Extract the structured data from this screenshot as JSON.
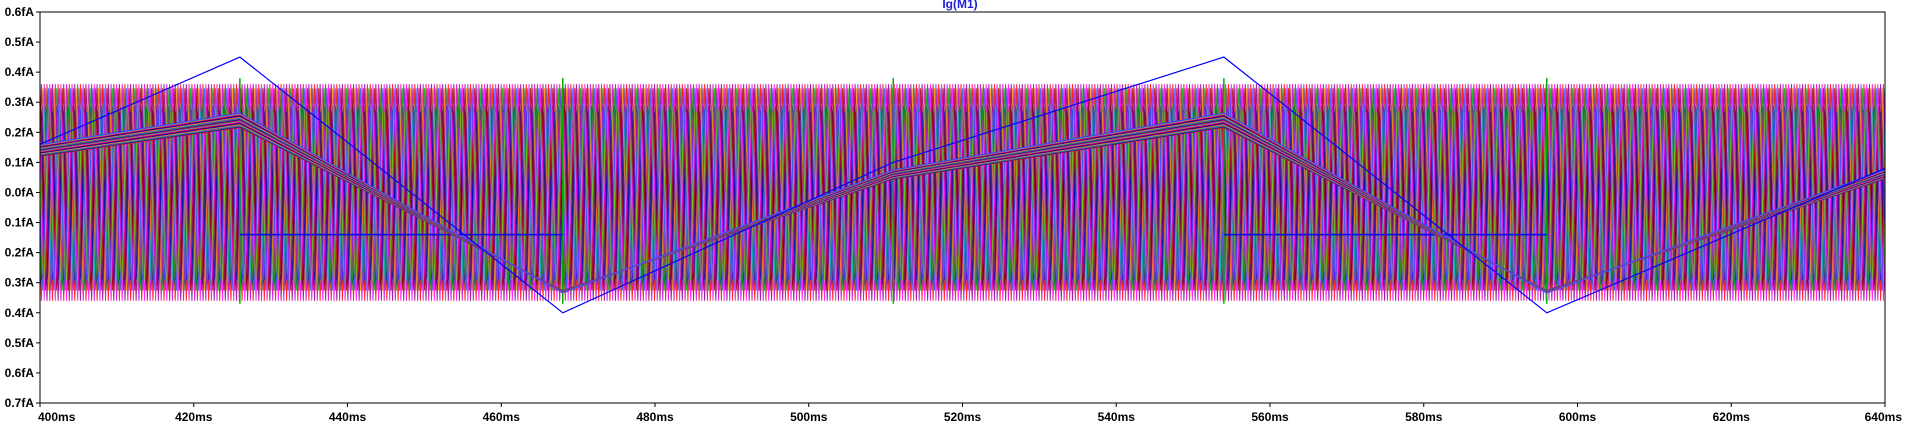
{
  "chart_data": {
    "type": "line",
    "title": "Ig(M1)",
    "title_color": "#1f1fd8",
    "xlabel": "",
    "ylabel": "",
    "x_unit": "ms",
    "y_unit": "fA",
    "xlim": [
      400,
      640
    ],
    "ylim": [
      -0.7,
      0.6
    ],
    "grid": false,
    "x_ticks": [
      "400ms",
      "420ms",
      "440ms",
      "460ms",
      "480ms",
      "500ms",
      "520ms",
      "540ms",
      "560ms",
      "580ms",
      "600ms",
      "620ms",
      "640ms"
    ],
    "y_ticks": [
      "0.6fA",
      "0.5fA",
      "0.4fA",
      "0.3fA",
      "0.2fA",
      "0.1fA",
      "0.0fA",
      "-0.1fA",
      "-0.2fA",
      "-0.3fA",
      "-0.4fA",
      "-0.5fA",
      "-0.6fA",
      "-0.7fA"
    ],
    "y_tick_labels_shown": [
      "0.6fA",
      "0.5fA",
      "0.4fA",
      "0.3fA",
      "0.2fA",
      "0.1fA",
      "0.0fA",
      "0.1fA",
      "0.2fA",
      "0.3fA",
      "0.4fA",
      "0.5fA",
      "0.6fA",
      "0.7fA"
    ],
    "triangle_envelope": {
      "x": [
        400,
        426,
        468,
        511,
        554,
        596,
        640
      ],
      "y": [
        0.14,
        0.24,
        -0.33,
        0.06,
        0.24,
        -0.33,
        0.06
      ]
    },
    "triangle_envelope_spread": 0.04,
    "triangle_envelope_count": 24,
    "oscillation": {
      "period_ms": 1.45,
      "amplitude": 0.38,
      "band_low": -0.37,
      "band_high": 0.38,
      "gap_x": [
        426,
        468,
        511,
        554,
        596
      ]
    },
    "colors": [
      "#ff0000",
      "#0000ff",
      "#00aa00",
      "#cc00cc",
      "#00bbbb",
      "#ff8800",
      "#880088",
      "#0000aa",
      "#aa0000",
      "#ff00ff",
      "#66cc00",
      "#4444ff"
    ],
    "outlier_series": {
      "color": "#0000ff",
      "x": [
        400,
        426,
        468,
        511,
        554,
        596,
        640
      ],
      "y": [
        0.16,
        0.45,
        -0.4,
        0.1,
        0.45,
        -0.4,
        0.08
      ]
    },
    "flat_step_series": {
      "color": "#0000ff",
      "segments": [
        {
          "x": [
            426,
            468
          ],
          "y": -0.14
        },
        {
          "x": [
            554,
            596
          ],
          "y": -0.14
        }
      ]
    }
  }
}
